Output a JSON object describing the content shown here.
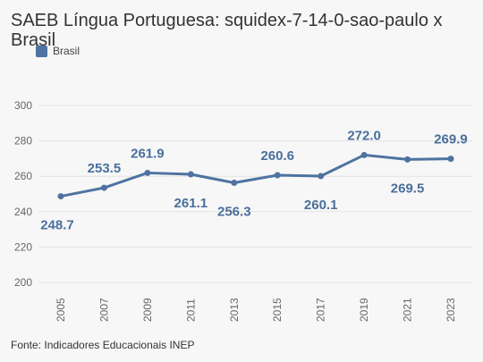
{
  "title": "SAEB Língua Portuguesa: squidex-7-14-0-sao-paulo x Brasil",
  "legend": {
    "label": "Brasil",
    "color": "#4e73a0"
  },
  "footer": "Fonte: Indicadores Educacionais INEP",
  "chart_data": {
    "type": "line",
    "title": "SAEB Língua Portuguesa: squidex-7-14-0-sao-paulo x Brasil",
    "xlabel": "",
    "ylabel": "",
    "categories": [
      "2005",
      "2007",
      "2009",
      "2011",
      "2013",
      "2015",
      "2017",
      "2019",
      "2021",
      "2023"
    ],
    "series": [
      {
        "name": "Brasil",
        "color": "#4e73a0",
        "values": [
          248.7,
          253.5,
          261.9,
          261.1,
          256.3,
          260.6,
          260.1,
          272.0,
          269.5,
          269.9
        ],
        "labels": [
          "248.7",
          "253.5",
          "261.9",
          "261.1",
          "256.3",
          "260.6",
          "260.1",
          "272.0",
          "269.5",
          "269.9"
        ]
      }
    ],
    "yticks": [
      "200",
      "220",
      "240",
      "260",
      "280",
      "300"
    ],
    "ylim": [
      200,
      300
    ],
    "grid": true,
    "legend_position": "top-left"
  }
}
